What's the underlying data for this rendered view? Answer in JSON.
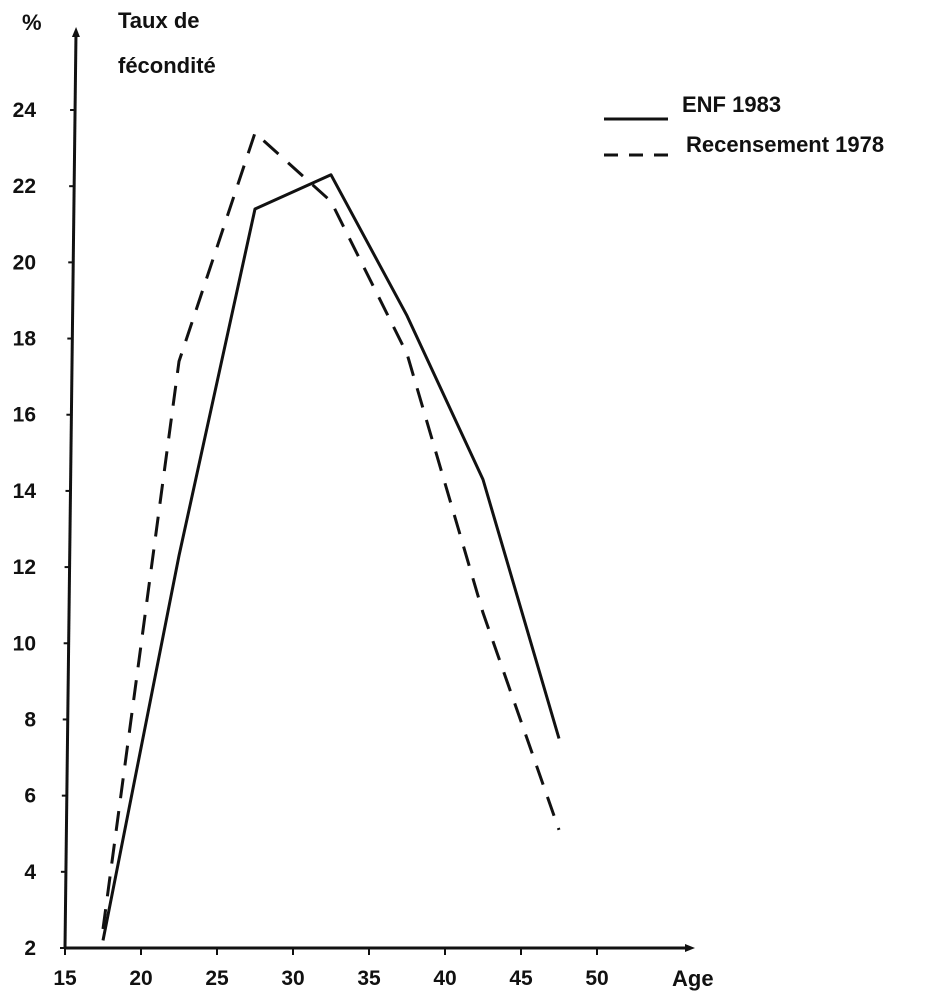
{
  "chart_data": {
    "type": "line",
    "y_unit": "%",
    "ylabel": "Taux de fécondité",
    "xlabel": "Age",
    "xlim": [
      15,
      50
    ],
    "ylim": [
      2,
      24
    ],
    "x_ticks": [
      "15",
      "20",
      "25",
      "30",
      "35",
      "40",
      "45",
      "50"
    ],
    "y_ticks": [
      "2",
      "4",
      "6",
      "8",
      "10",
      "12",
      "14",
      "16",
      "18",
      "20",
      "22",
      "24"
    ],
    "legend_position": "top-right",
    "series": [
      {
        "name": "ENF 1983",
        "style": "solid",
        "x": [
          17.5,
          22.5,
          27.5,
          32.5,
          37.5,
          42.5,
          47.5
        ],
        "y": [
          2.2,
          12.3,
          21.4,
          22.3,
          18.6,
          14.3,
          7.5
        ]
      },
      {
        "name": "Recensement 1978",
        "style": "dashed",
        "x": [
          17.5,
          22.5,
          27.5,
          32.5,
          37.5,
          42.5,
          47.5
        ],
        "y": [
          2.5,
          17.4,
          23.4,
          21.6,
          17.6,
          10.8,
          5.1
        ]
      }
    ]
  }
}
